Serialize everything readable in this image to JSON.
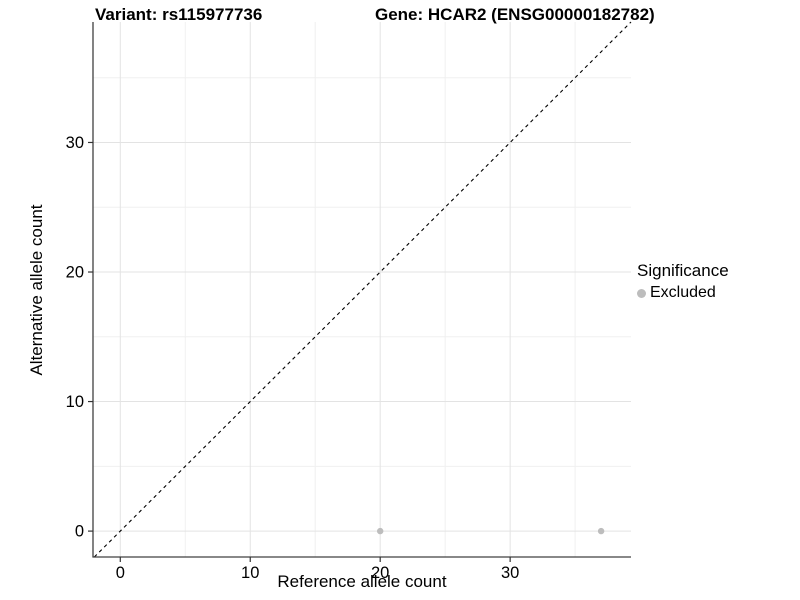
{
  "chart_data": {
    "type": "scatter",
    "title_left": "Variant: rs115977736",
    "title_right": "Gene: HCAR2 (ENSG00000182782)",
    "xlabel": "Reference allele count",
    "ylabel": "Alternative allele count",
    "x_major_ticks": [
      0,
      10,
      20,
      30
    ],
    "y_major_ticks": [
      0,
      10,
      20,
      30
    ],
    "x_minor_ticks": [
      5,
      15,
      25,
      35
    ],
    "y_minor_ticks": [
      5,
      15,
      25,
      35
    ],
    "xlim": [
      -2.1,
      39.3
    ],
    "ylim": [
      -2.0,
      39.3
    ],
    "grid": true,
    "legend_position": "right",
    "reference_line": {
      "slope": 1,
      "intercept": 0,
      "style": "dashed",
      "color": "#000000"
    },
    "series": [
      {
        "name": "Excluded",
        "color": "#bdbdbd",
        "points": [
          {
            "x": 20,
            "y": 0
          },
          {
            "x": 37,
            "y": 0
          }
        ]
      }
    ],
    "legend": {
      "title": "Significance",
      "items": [
        {
          "label": "Excluded",
          "color": "#bdbdbd"
        }
      ]
    },
    "colors": {
      "major_grid": "#e3e3e3",
      "minor_grid": "#f0f0f0",
      "axis_line": "#404040",
      "tick_mark": "#333333",
      "text": "#000000"
    }
  }
}
